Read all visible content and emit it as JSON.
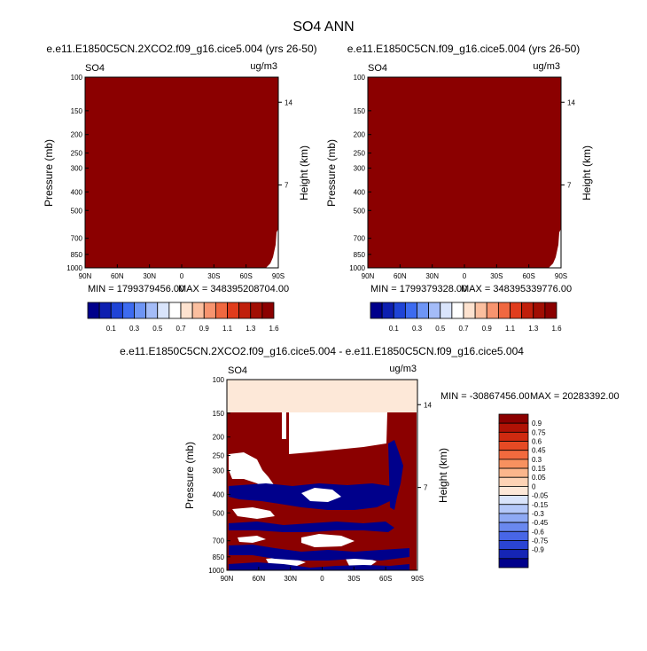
{
  "main_title": "SO4 ANN",
  "colors": {
    "dark_red": "#8b0000",
    "dark_blue": "#00008b",
    "light_fill": "#fde8d8",
    "white": "#ffffff"
  },
  "chart_data": [
    {
      "type": "heatmap",
      "title": "e.e11.E1850C5CN.2XCO2.f09_g16.cice5.004 (yrs 26-50)",
      "field_label": "SO4",
      "units": "ug/m3",
      "xlabel": "",
      "ylabel": "Pressure (mb)",
      "y2label": "Height (km)",
      "x_ticks": [
        "90N",
        "60N",
        "30N",
        "0",
        "30S",
        "60S",
        "90S"
      ],
      "y_ticks": [
        100,
        150,
        200,
        250,
        300,
        400,
        500,
        700,
        850,
        1000
      ],
      "y2_ticks": [
        14,
        7
      ],
      "min_label": "MIN = 1799379456.00",
      "max_label": "MAX = 348395208704.00",
      "colorbar_labels": [
        "0.1",
        "0.3",
        "0.5",
        "0.7",
        "0.9",
        "1.1",
        "1.3",
        "1.6"
      ],
      "colorbar_colors": [
        "#00008b",
        "#0d1fb0",
        "#1f44d6",
        "#3d6bf0",
        "#6e95f5",
        "#a4bcf8",
        "#d9e4fb",
        "#ffffff",
        "#fde2cf",
        "#fbbf9f",
        "#f7946f",
        "#f06840",
        "#e03c1c",
        "#c01f0b",
        "#a10e03",
        "#8b0000"
      ],
      "dominant_value": "above 1.6 everywhere"
    },
    {
      "type": "heatmap",
      "title": "e.e11.E1850C5CN.f09_g16.cice5.004 (yrs 26-50)",
      "field_label": "SO4",
      "units": "ug/m3",
      "xlabel": "",
      "ylabel": "Pressure (mb)",
      "y2label": "Height (km)",
      "x_ticks": [
        "90N",
        "60N",
        "30N",
        "0",
        "30S",
        "60S",
        "90S"
      ],
      "y_ticks": [
        100,
        150,
        200,
        250,
        300,
        400,
        500,
        700,
        850,
        1000
      ],
      "y2_ticks": [
        14,
        7
      ],
      "min_label": "MIN = 1799379328.00",
      "max_label": "MAX = 348395339776.00",
      "colorbar_labels": [
        "0.1",
        "0.3",
        "0.5",
        "0.7",
        "0.9",
        "1.1",
        "1.3",
        "1.6"
      ],
      "colorbar_colors": [
        "#00008b",
        "#0d1fb0",
        "#1f44d6",
        "#3d6bf0",
        "#6e95f5",
        "#a4bcf8",
        "#d9e4fb",
        "#ffffff",
        "#fde2cf",
        "#fbbf9f",
        "#f7946f",
        "#f06840",
        "#e03c1c",
        "#c01f0b",
        "#a10e03",
        "#8b0000"
      ],
      "dominant_value": "above 1.6 everywhere"
    },
    {
      "type": "heatmap",
      "title": "e.e11.E1850C5CN.2XCO2.f09_g16.cice5.004 - e.e11.E1850C5CN.f09_g16.cice5.004",
      "field_label": "SO4",
      "units": "ug/m3",
      "xlabel": "",
      "ylabel": "Pressure (mb)",
      "y2label": "Height (km)",
      "x_ticks": [
        "90N",
        "60N",
        "30N",
        "0",
        "30S",
        "60S",
        "90S"
      ],
      "y_ticks": [
        100,
        150,
        200,
        250,
        300,
        400,
        500,
        700,
        850,
        1000
      ],
      "y2_ticks": [
        14,
        7
      ],
      "min_label": "MIN = -30867456.00",
      "max_label": "MAX = 20283392.00",
      "colorbar_labels": [
        "0.9",
        "0.75",
        "0.6",
        "0.45",
        "0.3",
        "0.15",
        "0.05",
        "0",
        "-0.05",
        "-0.15",
        "-0.3",
        "-0.45",
        "-0.6",
        "-0.75",
        "-0.9"
      ],
      "colorbar_colors": [
        "#8b0000",
        "#b01205",
        "#cf2a10",
        "#e64a24",
        "#f26a3e",
        "#f7915f",
        "#fbb68c",
        "#fdd3b5",
        "#fde8d8",
        "#d9e4fb",
        "#b4c8f9",
        "#8ea9f4",
        "#6a88ef",
        "#4866e6",
        "#2a44d3",
        "#1525b5",
        "#00008b"
      ]
    }
  ]
}
